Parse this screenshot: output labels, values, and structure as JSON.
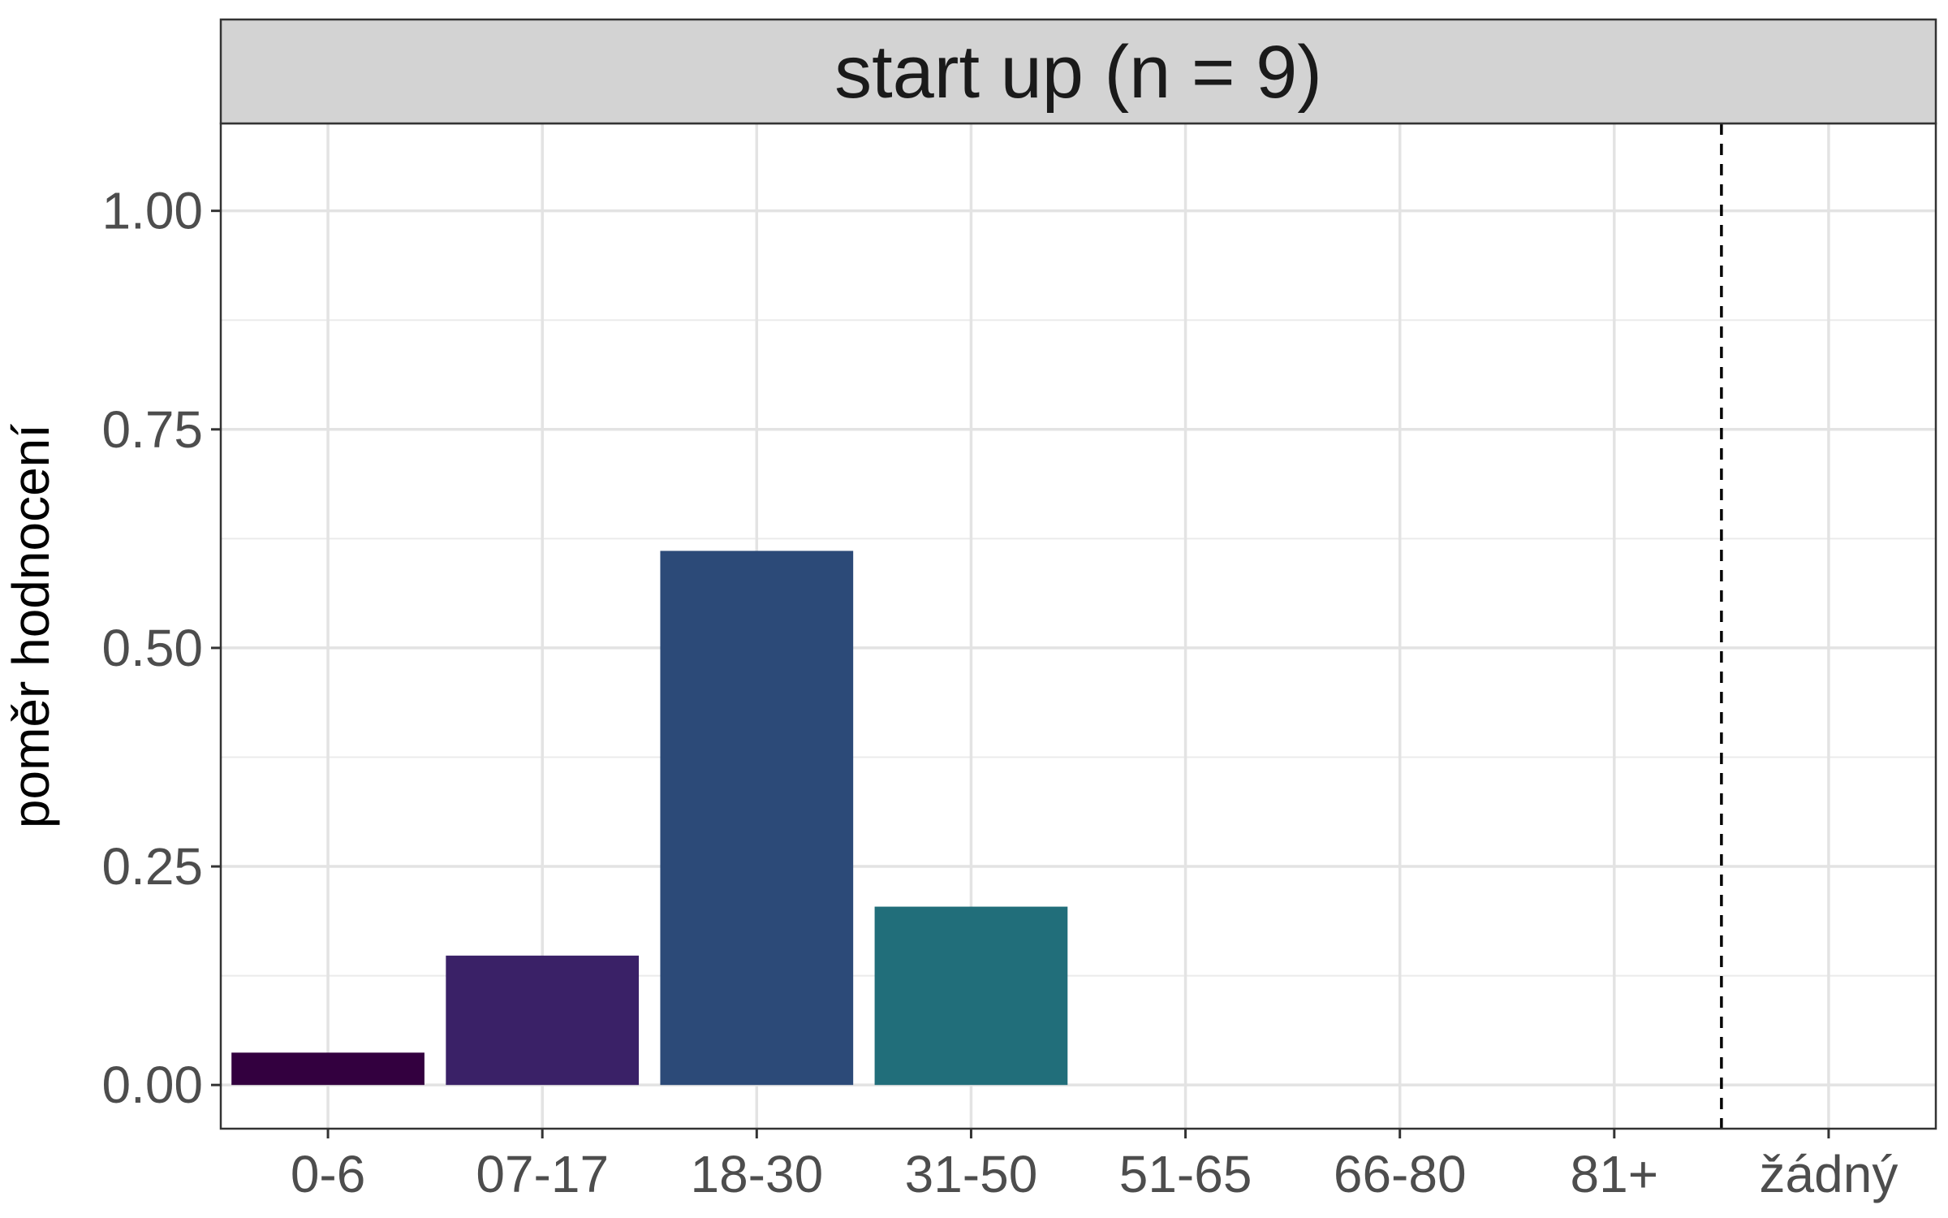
{
  "chart_data": {
    "type": "bar",
    "facet_title": "start up (n = 9)",
    "ylabel": "poměr hodnocení",
    "xlabel": "",
    "categories": [
      "0-6",
      "07-17",
      "18-30",
      "31-50",
      "51-65",
      "66-80",
      "81+",
      "žádný"
    ],
    "values": [
      0.037,
      0.148,
      0.611,
      0.204,
      0,
      0,
      0,
      0
    ],
    "colors": [
      "#33003f",
      "#3a2167",
      "#2c4a78",
      "#216e7a",
      "#1f8a80",
      "#31a57b",
      "#7bc55c",
      "#fde725"
    ],
    "ylim": [
      -0.05,
      1.1
    ],
    "yticks": [
      0,
      0.25,
      0.5,
      0.75,
      1
    ],
    "ytick_labels": [
      "0.00",
      "0.25",
      "0.50",
      "0.75",
      "1.00"
    ],
    "grid": true,
    "reference_line": {
      "style": "dashed",
      "between": [
        "81+",
        "žádný"
      ]
    }
  }
}
